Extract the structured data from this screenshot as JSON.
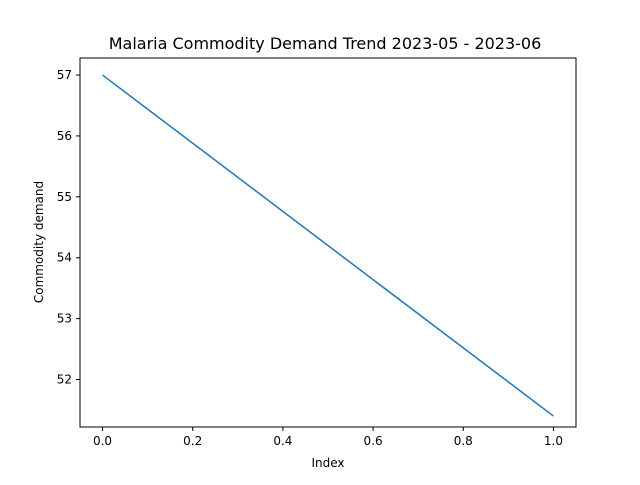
{
  "chart_data": {
    "type": "line",
    "title": "Malaria Commodity Demand Trend 2023-05 - 2023-06",
    "xlabel": "Index",
    "ylabel": "Commodity demand",
    "xlim": [
      -0.05,
      1.05
    ],
    "ylim": [
      51.22,
      57.28
    ],
    "x_ticks": [
      0.0,
      0.2,
      0.4,
      0.6,
      0.8,
      1.0
    ],
    "x_tick_labels": [
      "0.0",
      "0.2",
      "0.4",
      "0.6",
      "0.8",
      "1.0"
    ],
    "y_ticks": [
      52,
      53,
      54,
      55,
      56,
      57
    ],
    "y_tick_labels": [
      "52",
      "53",
      "54",
      "55",
      "56",
      "57"
    ],
    "grid": false,
    "legend": "none",
    "series": [
      {
        "x": [
          0.0,
          1.0
        ],
        "values": [
          57.0,
          51.4
        ],
        "color": "#1f77b4"
      }
    ]
  }
}
